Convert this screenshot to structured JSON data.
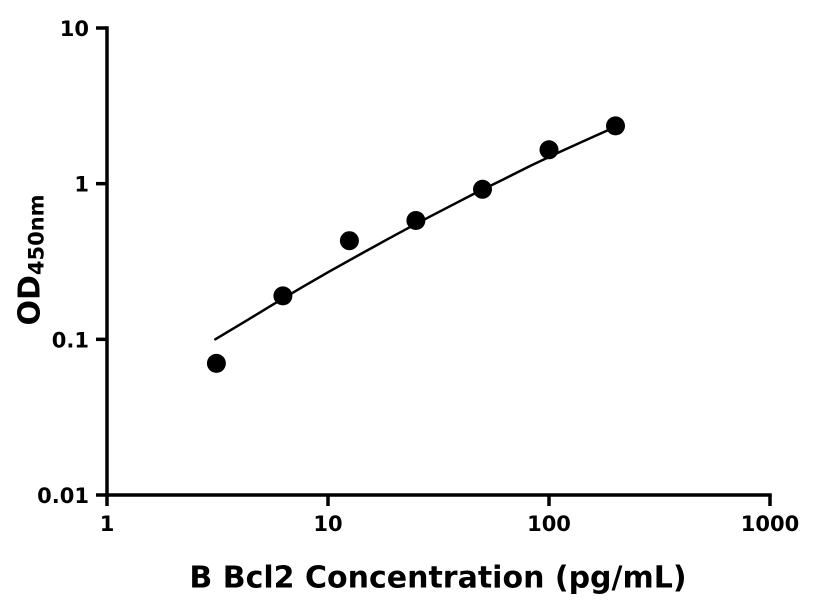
{
  "chart_data": {
    "type": "scatter",
    "title": "",
    "xlabel": "B Bcl2 Concentration (pg/mL)",
    "ylabel_main": "OD",
    "ylabel_sub": "450nm",
    "xscale": "log",
    "yscale": "log",
    "xlim": [
      1,
      1000
    ],
    "ylim": [
      0.01,
      10
    ],
    "x_ticks": [
      1,
      10,
      100,
      1000
    ],
    "x_tick_labels": [
      "1",
      "10",
      "100",
      "1000"
    ],
    "y_ticks": [
      0.01,
      0.1,
      1,
      10
    ],
    "y_tick_labels": [
      "0.01",
      "0.1",
      "1",
      "10"
    ],
    "grid": false,
    "legend": "none",
    "points": {
      "x": [
        3.125,
        6.25,
        12.5,
        25,
        50,
        100,
        200
      ],
      "y": [
        0.07,
        0.19,
        0.43,
        0.58,
        0.92,
        1.65,
        2.35
      ]
    },
    "fit_curve": [
      [
        3.09,
        0.1
      ],
      [
        4.17,
        0.129
      ],
      [
        5.62,
        0.167
      ],
      [
        7.59,
        0.215
      ],
      [
        10.2,
        0.274
      ],
      [
        13.8,
        0.348
      ],
      [
        18.6,
        0.44
      ],
      [
        25.1,
        0.553
      ],
      [
        33.9,
        0.691
      ],
      [
        45.7,
        0.859
      ],
      [
        61.7,
        1.06
      ],
      [
        83.2,
        1.31
      ],
      [
        112,
        1.6
      ],
      [
        151,
        1.94
      ],
      [
        200,
        2.32
      ]
    ],
    "marker_color": "#000000",
    "line_color": "#000000",
    "axis_color": "#000000",
    "background": "#ffffff"
  }
}
